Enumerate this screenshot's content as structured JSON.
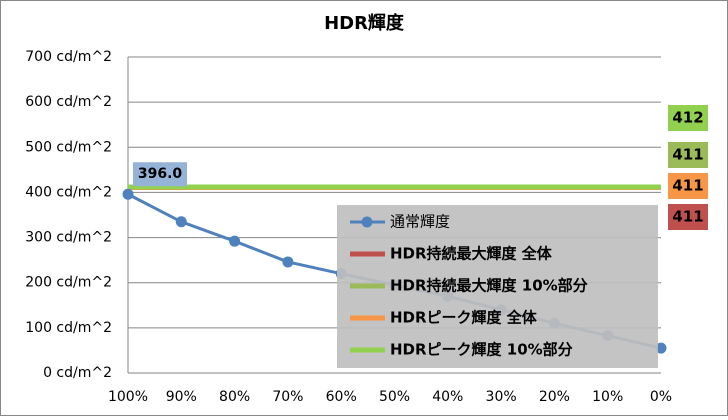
{
  "chart_data": {
    "type": "line",
    "title": "HDR輝度",
    "categories": [
      "100%",
      "90%",
      "80%",
      "70%",
      "60%",
      "50%",
      "40%",
      "30%",
      "20%",
      "10%",
      "0%"
    ],
    "ylim": [
      0,
      700
    ],
    "yticks": [
      {
        "value": 0,
        "label": "0 cd/m^2"
      },
      {
        "value": 100,
        "label": "100 cd/m^2"
      },
      {
        "value": 200,
        "label": "200 cd/m^2"
      },
      {
        "value": 300,
        "label": "300 cd/m^2"
      },
      {
        "value": 400,
        "label": "400 cd/m^2"
      },
      {
        "value": 500,
        "label": "500 cd/m^2"
      },
      {
        "value": 600,
        "label": "600 cd/m^2"
      },
      {
        "value": 700,
        "label": "700 cd/m^2"
      }
    ],
    "grid": true,
    "series": [
      {
        "name": "通常輝度",
        "color": "#4f81bd",
        "marker": true,
        "values": [
          396,
          335,
          292,
          246,
          220,
          195,
          170,
          140,
          110,
          83,
          55
        ],
        "value_labels": [
          "396.0",
          null,
          null,
          null,
          null,
          null,
          null,
          null,
          null,
          null,
          null
        ]
      },
      {
        "name": "HDR持続最大輝度 全体",
        "color": "#c0504d",
        "values": [
          411,
          411,
          411,
          411,
          411,
          411,
          411,
          411,
          411,
          411,
          411
        ]
      },
      {
        "name": "HDR持続最大輝度 10%部分",
        "color": "#9bbb59",
        "values": [
          411,
          411,
          411,
          411,
          411,
          411,
          411,
          411,
          411,
          411,
          411
        ]
      },
      {
        "name": "HDRピーク輝度 全体",
        "color": "#f79646",
        "values": [
          411,
          411,
          411,
          411,
          411,
          411,
          411,
          411,
          411,
          411,
          411
        ]
      },
      {
        "name": "HDRピーク輝度 10%部分",
        "color": "#92d050",
        "values": [
          412,
          412,
          412,
          412,
          412,
          412,
          412,
          412,
          412,
          412,
          412
        ]
      }
    ]
  }
}
